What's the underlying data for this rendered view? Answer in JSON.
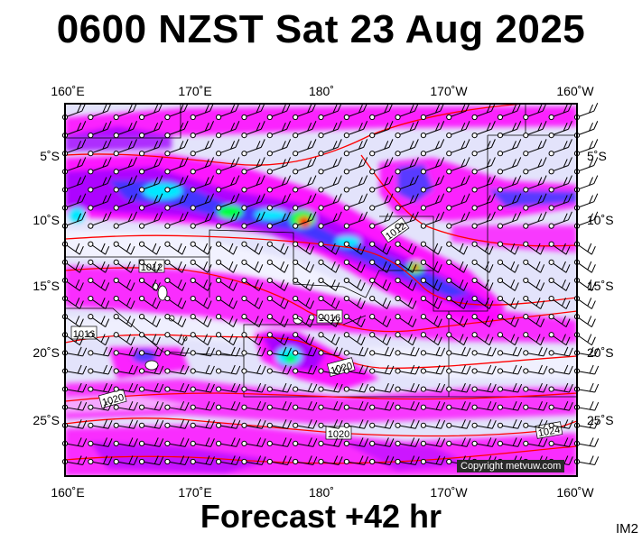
{
  "header": {
    "title": "0600 NZST Sat 23 Aug 2025"
  },
  "footer": {
    "subtitle": "Forecast +42 hr",
    "tag": "IM2"
  },
  "copyright": "Copyright metvuw.com",
  "axes": {
    "lon_labels": [
      "160˚E",
      "170˚E",
      "180˚",
      "170˚W",
      "160˚W"
    ],
    "lat_labels": [
      "5˚S",
      "10˚S",
      "15˚S",
      "20˚S",
      "25˚S"
    ]
  },
  "isobars": [
    {
      "label": "1012",
      "value": 1012
    },
    {
      "label": "1012",
      "value": 1012
    },
    {
      "label": "1016",
      "value": 1016
    },
    {
      "label": "1016",
      "value": 1016
    },
    {
      "label": "1020",
      "value": 1020
    },
    {
      "label": "1020",
      "value": 1020
    },
    {
      "label": "1020",
      "value": 1020
    },
    {
      "label": "1024",
      "value": 1024
    }
  ],
  "colors": {
    "ocean": "#e3e3fb",
    "rain_light": "#ff00ff",
    "rain_medium": "#a000ff",
    "rain_heavy": "#3040ff",
    "rain_very_heavy": "#00e8ff",
    "rain_intense": "#00ff40",
    "rain_extreme": "#ff2000",
    "isobar": "#ff0000",
    "border": "#000000"
  }
}
